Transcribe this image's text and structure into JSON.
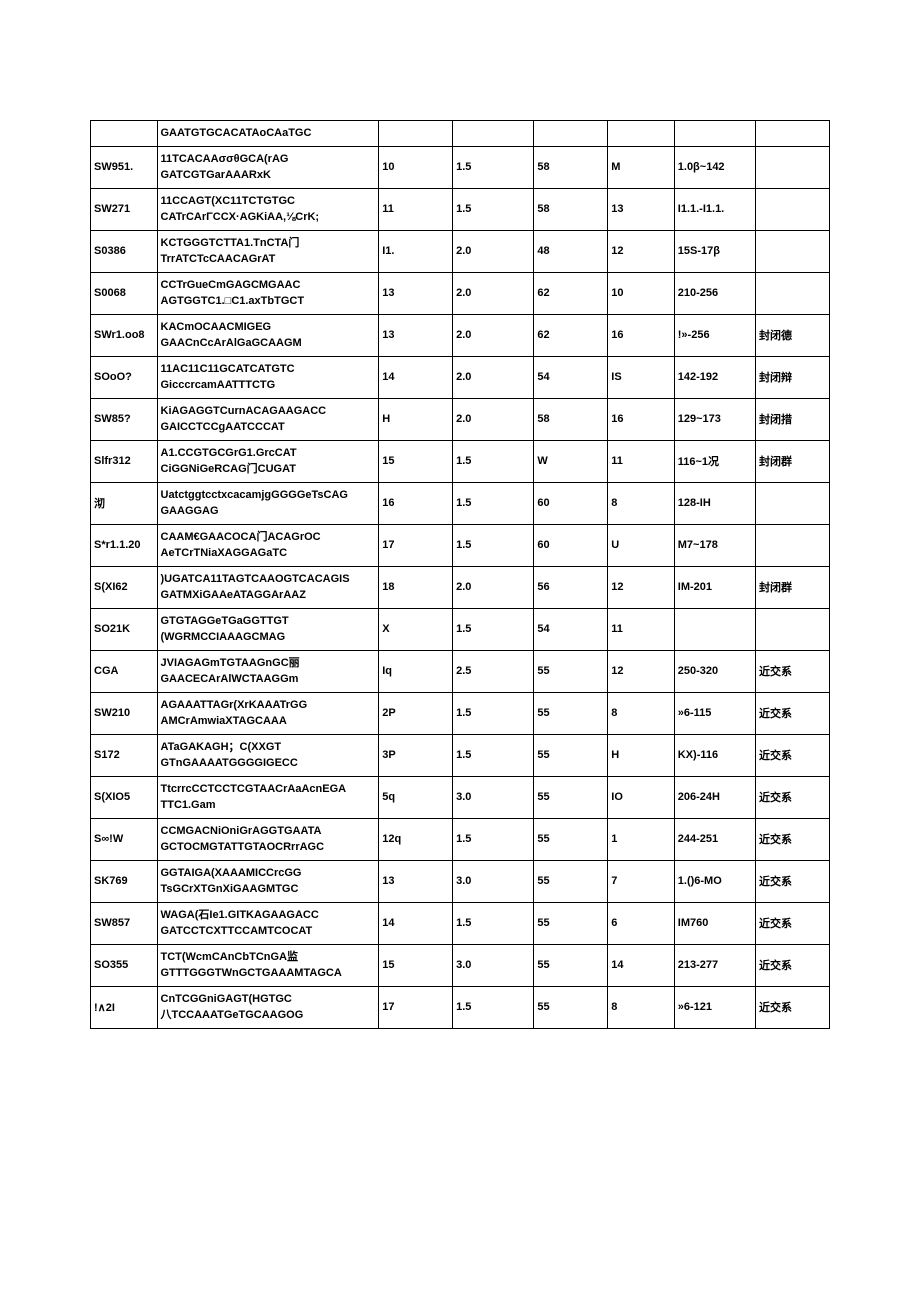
{
  "table": {
    "columns": [
      {
        "key": "id",
        "class": "col-id"
      },
      {
        "key": "seq",
        "class": "col-seq"
      },
      {
        "key": "c3",
        "class": "col-c3"
      },
      {
        "key": "c4",
        "class": "col-c4"
      },
      {
        "key": "c5",
        "class": "col-c5"
      },
      {
        "key": "c6",
        "class": "col-c6"
      },
      {
        "key": "c7",
        "class": "col-c7"
      },
      {
        "key": "c8",
        "class": "col-c8"
      }
    ],
    "rows": [
      {
        "id": "",
        "seq": [
          "GAATGTGCACATAoCAaTGC"
        ],
        "c3": "",
        "c4": "",
        "c5": "",
        "c6": "",
        "c7": "",
        "c8": ""
      },
      {
        "id": "SW951.",
        "seq": [
          "11TCACAAσσθGCA(rAG",
          "GATCGTGarAAARxK"
        ],
        "c3": "10",
        "c4": "1.5",
        "c5": "58",
        "c6": "M",
        "c7": "1.0β~142",
        "c8": ""
      },
      {
        "id": "SW271",
        "seq": [
          "11CCAGT(XC11TCTGTGC",
          "CATrCArΓCCX·AGKiAA,⅛CrK;"
        ],
        "c3": "11",
        "c4": "1.5",
        "c5": "58",
        "c6": "13",
        "c7": "I1.1.-I1.1.",
        "c8": ""
      },
      {
        "id": "S0386",
        "seq": [
          "KCTGGGTCTTA1.TnCTA门",
          "TrrATCTcCAACAGrAT"
        ],
        "c3": "I1.",
        "c4": "2.0",
        "c5": "48",
        "c6": "12",
        "c7": "15S-17β",
        "c8": ""
      },
      {
        "id": "S0068",
        "seq": [
          "CCTrGueCmGAGCMGAAC",
          "AGTGGTC1.□C1.axTbTGCT"
        ],
        "c3": "13",
        "c4": "2.0",
        "c5": "62",
        "c6": "10",
        "c7": "210-256",
        "c8": ""
      },
      {
        "id": "SWr1.oo8",
        "seq": [
          "KACmOCAACMIGEG",
          "GAACnCcArAlGaGCAAGM"
        ],
        "c3": "13",
        "c4": "2.0",
        "c5": "62",
        "c6": "16",
        "c7": "!»-256",
        "c8": "封闭德"
      },
      {
        "id": "SOoO?",
        "seq": [
          "11AC11C11GCATCATGTC",
          "GicccrcamAATTTCTG"
        ],
        "c3": "14",
        "c4": "2.0",
        "c5": "54",
        "c6": "IS",
        "c7": "142-192",
        "c8": "封闭辩"
      },
      {
        "id": "SW85?",
        "seq": [
          "KiAGAGGTCurnACAGAAGACC",
          "GAICCTCCgAATCCCAT"
        ],
        "c3": "H",
        "c4": "2.0",
        "c5": "58",
        "c6": "16",
        "c7": "129~173",
        "c8": "封闭措"
      },
      {
        "id": "Slfr312",
        "seq": [
          "A1.CCGTGCGrG1.GrcCAT",
          "CiGGNiGeRCAG门CUGAT"
        ],
        "c3": "15",
        "c4": "1.5",
        "c5": "W",
        "c6": "11",
        "c7": "116~1况",
        "c8": "封闭群"
      },
      {
        "id": "沏",
        "seq": [
          "UatctggtcctxcacamjgGGGGeTsCAG",
          "GAAGGAG"
        ],
        "c3": "16",
        "c4": "1.5",
        "c5": "60",
        "c6": "8",
        "c7": "128-IH",
        "c8": ""
      },
      {
        "id": "S*r1.1.20",
        "seq": [
          "CAAM€GAACOCA门ACAGrOC",
          "AeTCrTNiaXAGGAGaTC"
        ],
        "c3": "17",
        "c4": "1.5",
        "c5": "60",
        "c6": "U",
        "c7": "M7~178",
        "c8": ""
      },
      {
        "id": "S(XI62",
        "seq": [
          ")UGATCA11TAGTCAAOGTCACAGIS",
          "GATMXiGAAeATAGGArAAZ"
        ],
        "c3": "18",
        "c4": "2.0",
        "c5": "56",
        "c6": "12",
        "c7": "IM-201",
        "c8": "封闭群"
      },
      {
        "id": "SO21K",
        "seq": [
          "GTGTAGGeTGaGGTTGT",
          "(WGRMCCIAAAGCMAG"
        ],
        "c3": "X",
        "c4": "1.5",
        "c5": "54",
        "c6": "11",
        "c7": "",
        "c8": ""
      },
      {
        "id": "CGA",
        "seq": [
          "JVIAGAGmTGTAAGnGC丽",
          "GAACECArAlWCTAAGGm"
        ],
        "c3": "Iq",
        "c4": "2.5",
        "c5": "55",
        "c6": "12",
        "c7": "250-320",
        "c8": "近交系"
      },
      {
        "id": "SW210",
        "seq": [
          "AGAAATTAGr(XrKAAATrGG",
          "AMCrAmwiaXTAGCAAA"
        ],
        "c3": "2P",
        "c4": "1.5",
        "c5": "55",
        "c6": "8",
        "c7": "»6-115",
        "c8": "近交系"
      },
      {
        "id": "S172",
        "seq": [
          "ATaGAKAGH；C(XXGT",
          "GTnGAAAATGGGGIGECC"
        ],
        "c3": "3P",
        "c4": "1.5",
        "c5": "55",
        "c6": "H",
        "c7": "KX)-116",
        "c8": "近交系"
      },
      {
        "id": "S(XIO5",
        "seq": [
          "TtcrrcCCTCCTCGTAACrAaAcnEGA",
          "TTC1.Gam"
        ],
        "c3": "5q",
        "c4": "3.0",
        "c5": "55",
        "c6": "IO",
        "c7": "206-24H",
        "c8": "近交系"
      },
      {
        "id": "S∞!W",
        "seq": [
          "CCMGACNiOniGrAGGTGAATA",
          "GCTOCMGTATTGTAOCRrrAGC"
        ],
        "c3": "12q",
        "c4": "1.5",
        "c5": "55",
        "c6": "1",
        "c7": "244-251",
        "c8": "近交系"
      },
      {
        "id": "SK769",
        "seq": [
          "GGTAIGA(XAAAMICCrcGG",
          "TsGCrXTGnXiGAAGMTGC"
        ],
        "c3": "13",
        "c4": "3.0",
        "c5": "55",
        "c6": "7",
        "c7": "1.()6-MO",
        "c8": "近交系"
      },
      {
        "id": "SW857",
        "seq": [
          "WAGA(石Ie1.GITKAGAAGACC",
          "GATCCTCXTTCCAMTCOCAT"
        ],
        "c3": "14",
        "c4": "1.5",
        "c5": "55",
        "c6": "6",
        "c7": "IM760",
        "c8": "近交系"
      },
      {
        "id": "SO355",
        "seq": [
          "TCT(WcmCAnCbTCnGA监",
          "GTTTGGGTWnGCTGAAAMTAGCA"
        ],
        "c3": "15",
        "c4": "3.0",
        "c5": "55",
        "c6": "14",
        "c7": "213-277",
        "c8": "近交系"
      },
      {
        "id": "!∧2I",
        "seq": [
          "CnTCGGniGAGT(HGTGC",
          "八TCCAAATGeTGCAAGOG"
        ],
        "c3": "17",
        "c4": "1.5",
        "c5": "55",
        "c6": "8",
        "c7": "»6-121",
        "c8": "近交系"
      }
    ]
  },
  "style": {
    "border_color": "#000000",
    "background": "#ffffff",
    "font_size": 11,
    "font_weight": "bold"
  }
}
